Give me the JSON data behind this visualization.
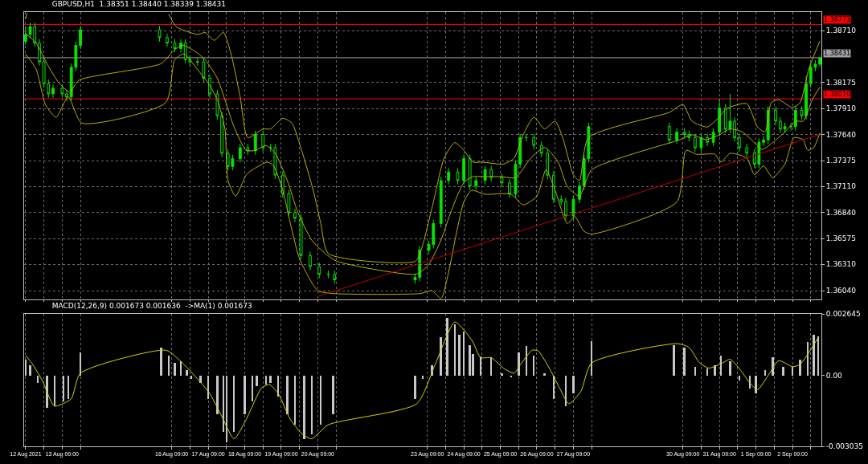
{
  "chart_data": [
    {
      "type": "candlestick",
      "title": "GBPUSD,H1  1.38351 1.38440 1.38339 1.38431",
      "color": "#00e600",
      "x": [
        "2021-08-12T09:00",
        "2021-08-12T12:00",
        "2021-08-12T15:00",
        "2021-08-12T18:00",
        "2021-08-12T21:00",
        "2021-08-13T00:00",
        "2021-08-13T03:00",
        "2021-08-13T09:00",
        "2021-08-13T12:00",
        "2021-08-13T15:00",
        "2021-08-13T18:00",
        "2021-08-13T21:00",
        "2021-08-16T01:00",
        "2021-08-16T06:00",
        "2021-08-16T11:00",
        "2021-08-16T15:00",
        "2021-08-16T18:00",
        "2021-08-16T21:00",
        "2021-08-17T02:00",
        "2021-08-17T06:00",
        "2021-08-17T10:00",
        "2021-08-17T15:00",
        "2021-08-17T18:00",
        "2021-08-17T22:00",
        "2021-08-18T01:00",
        "2021-08-18T06:00",
        "2021-08-18T11:00",
        "2021-08-18T16:00",
        "2021-08-18T21:00",
        "2021-08-19T02:00",
        "2021-08-19T05:00",
        "2021-08-19T10:00",
        "2021-08-19T14:00",
        "2021-08-19T18:00",
        "2021-08-19T22:00",
        "2021-08-20T04:00",
        "2021-08-20T10:00",
        "2021-08-20T16:00",
        "2021-08-20T20:00",
        "2021-08-23T01:00",
        "2021-08-23T04:00",
        "2021-08-23T10:00",
        "2021-08-23T13:00",
        "2021-08-23T18:00",
        "2021-08-23T23:00",
        "2021-08-24T05:00",
        "2021-08-24T09:00",
        "2021-08-24T13:00",
        "2021-08-24T17:00",
        "2021-08-24T23:00",
        "2021-08-25T03:00",
        "2021-08-25T10:00",
        "2021-08-25T15:00",
        "2021-08-25T19:00",
        "2021-08-25T22:00",
        "2021-08-26T02:00",
        "2021-08-26T07:00",
        "2021-08-26T12:00",
        "2021-08-26T16:00",
        "2021-08-26T20:00",
        "2021-08-27T01:00",
        "2021-08-27T04:00",
        "2021-08-27T09:00",
        "2021-08-27T13:00",
        "2021-08-27T16:00",
        "2021-08-27T19:00",
        "2021-08-30T00:00",
        "2021-08-30T05:00",
        "2021-08-30T10:00",
        "2021-08-30T13:00",
        "2021-08-30T17:00",
        "2021-08-30T21:00",
        "2021-08-31T01:00",
        "2021-08-31T05:00",
        "2021-08-31T09:00",
        "2021-08-31T13:00",
        "2021-08-31T16:00",
        "2021-08-31T19:00",
        "2021-08-31T22:00",
        "2021-09-01T03:00",
        "2021-09-01T08:00",
        "2021-09-01T11:00",
        "2021-09-01T14:00",
        "2021-09-01T17:00",
        "2021-09-01T22:00",
        "2021-09-02T01:00",
        "2021-09-02T04:00",
        "2021-09-02T08:00",
        "2021-09-02T11:00",
        "2021-09-02T15:00",
        "2021-09-02T18:00",
        "2021-09-02T21:00",
        "2021-09-03T00:00",
        "2021-09-03T03:00"
      ],
      "ohlc": [
        [
          1.386,
          1.3875,
          1.3856,
          1.3867
        ],
        [
          1.3867,
          1.3879,
          1.3863,
          1.3875
        ],
        [
          1.3875,
          1.3879,
          1.38542,
          1.38582
        ],
        [
          1.38582,
          1.38622,
          1.38349,
          1.38389
        ],
        [
          1.38389,
          1.38429,
          1.38125,
          1.38165
        ],
        [
          1.38165,
          1.38205,
          1.3802,
          1.3806
        ],
        [
          1.3806,
          1.38157,
          1.3802,
          1.38117
        ],
        [
          1.38117,
          1.38157,
          1.3802,
          1.3806
        ],
        [
          1.3806,
          1.381,
          1.37988,
          1.38028
        ],
        [
          1.38028,
          1.38373,
          1.37988,
          1.38333
        ],
        [
          1.38333,
          1.38598,
          1.38293,
          1.38558
        ],
        [
          1.38558,
          1.38758,
          1.38518,
          1.38718
        ],
        [
          1.38718,
          1.38758,
          1.38598,
          1.38638
        ],
        [
          1.38638,
          1.38678,
          1.38542,
          1.38582
        ],
        [
          1.38582,
          1.38622,
          1.38486,
          1.38526
        ],
        [
          1.38526,
          1.38622,
          1.38486,
          1.38582
        ],
        [
          1.38582,
          1.38622,
          1.38373,
          1.38413
        ],
        [
          1.38413,
          1.38453,
          1.38349,
          1.38389
        ],
        [
          1.38389,
          1.38429,
          1.38349,
          1.38389
        ],
        [
          1.38389,
          1.38429,
          1.38181,
          1.38221
        ],
        [
          1.38221,
          1.38261,
          1.3802,
          1.3806
        ],
        [
          1.3806,
          1.381,
          1.37796,
          1.37836
        ],
        [
          1.37836,
          1.37876,
          1.37411,
          1.37451
        ],
        [
          1.37451,
          1.37491,
          1.37275,
          1.37315
        ],
        [
          1.37315,
          1.37435,
          1.37275,
          1.37395
        ],
        [
          1.37395,
          1.37547,
          1.37355,
          1.37507
        ],
        [
          1.37507,
          1.37547,
          1.37435,
          1.37475
        ],
        [
          1.37475,
          1.37683,
          1.37435,
          1.37643
        ],
        [
          1.37643,
          1.37683,
          1.37467,
          1.37507
        ],
        [
          1.37507,
          1.37547,
          1.37467,
          1.37507
        ],
        [
          1.37507,
          1.37547,
          1.37186,
          1.37226
        ],
        [
          1.37226,
          1.37266,
          1.36994,
          1.37034
        ],
        [
          1.37034,
          1.37074,
          1.36801,
          1.36841
        ],
        [
          1.36841,
          1.36881,
          1.36745,
          1.36785
        ],
        [
          1.36785,
          1.36825,
          1.3636,
          1.364
        ],
        [
          1.364,
          1.3644,
          1.36248,
          1.36288
        ],
        [
          1.36288,
          1.36328,
          1.36168,
          1.36208
        ],
        [
          1.36208,
          1.36248,
          1.36168,
          1.36208
        ],
        [
          1.36208,
          1.36248,
          1.36112,
          1.36152
        ],
        [
          1.36152,
          1.36216,
          1.36112,
          1.36176
        ],
        [
          1.36176,
          1.36496,
          1.36136,
          1.36456
        ],
        [
          1.36456,
          1.36553,
          1.36416,
          1.36513
        ],
        [
          1.36513,
          1.36769,
          1.36473,
          1.36729
        ],
        [
          1.36729,
          1.3721,
          1.36689,
          1.3717
        ],
        [
          1.3717,
          1.37298,
          1.3713,
          1.37258
        ],
        [
          1.37258,
          1.37298,
          1.3713,
          1.3717
        ],
        [
          1.3717,
          1.37435,
          1.3713,
          1.37395
        ],
        [
          1.37395,
          1.37435,
          1.37074,
          1.37114
        ],
        [
          1.37114,
          1.3721,
          1.37074,
          1.3717
        ],
        [
          1.3717,
          1.37322,
          1.3713,
          1.37282
        ],
        [
          1.37282,
          1.37322,
          1.37162,
          1.37202
        ],
        [
          1.37202,
          1.37242,
          1.37106,
          1.37146
        ],
        [
          1.37146,
          1.37186,
          1.36994,
          1.37034
        ],
        [
          1.37034,
          1.37379,
          1.36994,
          1.37339
        ],
        [
          1.37339,
          1.37651,
          1.37299,
          1.37611
        ],
        [
          1.37611,
          1.37651,
          1.37571,
          1.37611
        ],
        [
          1.37611,
          1.37651,
          1.37491,
          1.37531
        ],
        [
          1.37531,
          1.37571,
          1.37411,
          1.37451
        ],
        [
          1.37451,
          1.37491,
          1.37186,
          1.37226
        ],
        [
          1.37226,
          1.37266,
          1.36938,
          1.36978
        ],
        [
          1.36978,
          1.37018,
          1.36914,
          1.36954
        ],
        [
          1.36954,
          1.36994,
          1.36769,
          1.36809
        ],
        [
          1.36809,
          1.37018,
          1.36769,
          1.36978
        ],
        [
          1.36978,
          1.37154,
          1.36938,
          1.37114
        ],
        [
          1.37114,
          1.37435,
          1.37074,
          1.37395
        ],
        [
          1.37395,
          1.37764,
          1.37355,
          1.37724
        ],
        [
          1.37724,
          1.37764,
          1.37547,
          1.37587
        ],
        [
          1.37587,
          1.37707,
          1.37547,
          1.37667
        ],
        [
          1.37667,
          1.37707,
          1.37603,
          1.37643
        ],
        [
          1.37643,
          1.37683,
          1.37571,
          1.37611
        ],
        [
          1.37611,
          1.37651,
          1.37467,
          1.37507
        ],
        [
          1.37507,
          1.37651,
          1.37467,
          1.37611
        ],
        [
          1.37611,
          1.37651,
          1.37523,
          1.37563
        ],
        [
          1.37563,
          1.37707,
          1.37523,
          1.37667
        ],
        [
          1.37667,
          1.3801,
          1.37627,
          1.37916
        ],
        [
          1.37916,
          1.37956,
          1.37659,
          1.37699
        ],
        [
          1.37699,
          1.3806,
          1.37659,
          1.3778
        ],
        [
          1.3778,
          1.3782,
          1.37571,
          1.37611
        ],
        [
          1.37611,
          1.37651,
          1.37467,
          1.37507
        ],
        [
          1.37507,
          1.37547,
          1.37411,
          1.37451
        ],
        [
          1.37451,
          1.37491,
          1.37299,
          1.37339
        ],
        [
          1.37339,
          1.37603,
          1.37299,
          1.37563
        ],
        [
          1.37563,
          1.37627,
          1.37523,
          1.37587
        ],
        [
          1.37587,
          1.37932,
          1.37547,
          1.37892
        ],
        [
          1.37892,
          1.37932,
          1.3774,
          1.3778
        ],
        [
          1.3778,
          1.3782,
          1.37659,
          1.37699
        ],
        [
          1.37699,
          1.37764,
          1.37659,
          1.37724
        ],
        [
          1.37724,
          1.37764,
          1.37684,
          1.37724
        ],
        [
          1.37724,
          1.37932,
          1.37684,
          1.37892
        ],
        [
          1.37892,
          1.37932,
          1.37796,
          1.37836
        ],
        [
          1.37836,
          1.3825,
          1.37796,
          1.38165
        ],
        [
          1.38165,
          1.38373,
          1.38125,
          1.38333
        ],
        [
          1.38333,
          1.38405,
          1.38293,
          1.38365
        ],
        [
          1.38365,
          1.3844,
          1.38339,
          1.38431
        ]
      ],
      "series": [
        {
          "type": "line",
          "color": "#b8b000",
          "x": [
            "2021-08-12T09:00",
            "2021-08-12T10:00",
            "2021-08-12T12:00",
            "2021-08-16T07:00",
            "2021-08-16T12:00",
            "2021-08-17T02:00",
            "2021-08-17T07:00",
            "2021-08-17T13:00",
            "2021-08-17T19:00",
            "2021-08-18T00:00",
            "2021-08-18T06:00",
            "2021-08-18T11:00",
            "2021-08-18T21:00",
            "2021-08-19T02:00",
            "2021-08-19T10:00",
            "2021-08-19T16:00",
            "2021-08-19T23:00",
            "2021-08-20T06:00",
            "2021-08-20T11:00",
            "2021-08-20T16:00",
            "2021-08-23T01:00",
            "2021-08-23T05:00",
            "2021-08-23T13:00",
            "2021-08-23T20:00",
            "2021-08-24T03:00",
            "2021-08-24T09:00",
            "2021-08-24T15:00",
            "2021-08-24T21:00",
            "2021-08-25T11:00",
            "2021-08-25T18:00",
            "2021-08-26T00:00",
            "2021-08-26T07:00",
            "2021-08-26T14:00",
            "2021-08-26T21:00",
            "2021-08-27T02:00",
            "2021-08-27T09:00",
            "2021-08-27T13:00",
            "2021-08-27T19:00",
            "2021-08-30T00:00",
            "2021-08-30T09:00",
            "2021-08-30T15:00",
            "2021-08-31T01:00",
            "2021-08-31T08:00",
            "2021-08-31T14:00",
            "2021-09-01T03:00",
            "2021-09-01T10:00",
            "2021-09-01T15:00",
            "2021-09-01T19:00",
            "2021-09-02T00:00",
            "2021-09-02T09:00",
            "2021-09-02T14:00",
            "2021-09-02T20:00",
            "2021-09-03T03:00"
          ],
          "values": [
            1.3883,
            1.3889,
            null,
            1.3888,
            1.3875,
            1.3867,
            1.3869,
            1.3861,
            1.3869,
            1.3847,
            1.3803,
            1.3761,
            1.377,
            1.377,
            1.3781,
            1.3776,
            1.3745,
            1.3707,
            1.3673,
            1.3642,
            1.3634,
            1.3646,
            1.3695,
            1.374,
            1.3756,
            1.3748,
            1.3736,
            1.3736,
            1.3734,
            1.374,
            1.3764,
            1.3782,
            1.377,
            1.3778,
            1.3761,
            1.3723,
            1.3717,
            1.3761,
            1.3787,
            1.3795,
            1.3778,
            1.3772,
            1.3781,
            1.3791,
            1.3796,
            1.3772,
            1.3767,
            1.3797,
            1.38,
            1.3792,
            1.3797,
            1.3833,
            1.386
          ]
        },
        {
          "type": "line",
          "color": "#b8b000",
          "x": [
            "2021-08-12T09:00",
            "2021-08-12T16:00",
            "2021-08-12T23:00",
            "2021-08-13T07:00",
            "2021-08-13T14:00",
            "2021-08-13T20:00",
            "2021-08-16T02:00",
            "2021-08-16T10:00",
            "2021-08-16T16:00",
            "2021-08-17T00:00",
            "2021-08-17T07:00",
            "2021-08-17T15:00",
            "2021-08-17T20:00",
            "2021-08-18T02:00",
            "2021-08-18T10:00",
            "2021-08-18T16:00",
            "2021-08-18T23:00",
            "2021-08-19T05:00",
            "2021-08-19T13:00",
            "2021-08-19T20:00",
            "2021-08-20T05:00",
            "2021-08-20T14:00",
            "2021-08-20T22:00",
            "2021-08-23T02:00",
            "2021-08-23T10:00",
            "2021-08-23T18:00",
            "2021-08-24T01:00",
            "2021-08-24T09:00",
            "2021-08-24T15:00",
            "2021-08-24T23:00",
            "2021-08-25T10:00",
            "2021-08-25T19:00",
            "2021-08-26T05:00",
            "2021-08-26T14:00",
            "2021-08-26T23:00",
            "2021-08-27T05:00",
            "2021-08-27T13:00",
            "2021-08-27T21:00",
            "2021-08-30T07:00",
            "2021-08-30T15:00",
            "2021-08-31T00:00",
            "2021-08-31T09:00",
            "2021-08-31T16:00",
            "2021-09-01T00:00",
            "2021-09-01T06:00",
            "2021-09-01T13:00",
            "2021-09-01T20:00",
            "2021-09-02T04:00",
            "2021-09-02T11:00",
            "2021-09-02T16:00",
            "2021-09-02T22:00",
            "2021-09-03T03:00"
          ],
          "values": [
            1.3868,
            1.3858,
            1.3837,
            1.3817,
            1.3808,
            1.382,
            1.3837,
            1.385,
            1.3856,
            1.385,
            1.3841,
            1.3822,
            1.38,
            1.3772,
            1.3748,
            1.3748,
            1.3753,
            1.3745,
            1.3717,
            1.3684,
            1.3656,
            1.3642,
            1.3634,
            1.3621,
            1.3631,
            1.3656,
            1.3687,
            1.3715,
            1.3721,
            1.3721,
            1.3721,
            1.372,
            1.374,
            1.3751,
            1.3736,
            1.3711,
            1.3701,
            1.3728,
            1.3759,
            1.3764,
            1.3759,
            1.3764,
            1.377,
            1.3767,
            1.3759,
            1.3749,
            1.3756,
            1.3767,
            1.3778,
            1.3778,
            1.38,
            1.3813
          ]
        },
        {
          "type": "line",
          "color": "#b8b000",
          "x": [
            "2021-08-12T09:00",
            "2021-08-12T16:00",
            "2021-08-12T22:00",
            "2021-08-13T05:00",
            "2021-08-13T13:00",
            "2021-08-13T22:00",
            "2021-08-16T05:00",
            "2021-08-16T11:00",
            "2021-08-16T17:00",
            "2021-08-17T02:00",
            "2021-08-17T09:00",
            "2021-08-17T15:00",
            "2021-08-17T20:00",
            "2021-08-17T22:00",
            "2021-08-18T03:00",
            "2021-08-18T10:00",
            "2021-08-18T14:00",
            "2021-08-19T00:00",
            "2021-08-19T04:00",
            "2021-08-19T10:00",
            "2021-08-19T15:00",
            "2021-08-19T21:00",
            "2021-08-20T09:00",
            "2021-08-20T20:00",
            "2021-08-23T04:00",
            "2021-08-23T12:00",
            "2021-08-23T18:00",
            "2021-08-23T23:00",
            "2021-08-24T04:00",
            "2021-08-24T09:00",
            "2021-08-24T14:00",
            "2021-08-24T23:00",
            "2021-08-25T16:00",
            "2021-08-26T00:00",
            "2021-08-26T09:00",
            "2021-08-26T15:00",
            "2021-08-26T21:00",
            "2021-08-27T05:00",
            "2021-08-27T10:00",
            "2021-08-27T16:00",
            "2021-08-27T21:00",
            "2021-08-30T05:00",
            "2021-08-30T11:00",
            "2021-08-30T18:00",
            "2021-08-31T06:00",
            "2021-08-31T10:00",
            "2021-08-31T16:00",
            "2021-09-01T03:00",
            "2021-09-01T08:00",
            "2021-09-01T14:00",
            "2021-09-01T20:00",
            "2021-09-02T04:00",
            "2021-09-02T10:00",
            "2021-09-02T16:00",
            "2021-09-02T19:00",
            "2021-09-02T23:00",
            "2021-09-03T03:00"
          ],
          "values": [
            1.3847,
            1.3831,
            1.3795,
            1.3782,
            1.3803,
            1.3776,
            1.3797,
            1.3841,
            1.3847,
            1.3831,
            1.3817,
            1.38,
            1.377,
            1.3717,
            1.3701,
            1.3723,
            1.3728,
            1.3736,
            1.3732,
            1.3707,
            1.3673,
            1.3637,
            1.3604,
            1.3601,
            1.3601,
            1.3604,
            1.3596,
            1.3623,
            1.3662,
            1.3695,
            1.3707,
            1.3703,
            1.3703,
            1.3692,
            1.3701,
            1.3728,
            1.3707,
            1.3673,
            1.368,
            1.3665,
            1.3662,
            1.3695,
            1.3748,
            1.3744,
            1.3744,
            1.3736,
            1.3745,
            1.374,
            1.3723,
            1.3732,
            1.372,
            1.3734,
            1.3761,
            1.3759,
            1.3748,
            1.3751,
            1.3766
          ]
        },
        {
          "type": "line",
          "color": "#c00000",
          "x": [
            "2021-08-20T09:00",
            "2021-09-03T02:00"
          ],
          "values": [
            1.3598,
            1.3764
          ]
        }
      ],
      "ref_lines": [
        {
          "axis": "y",
          "value": 1.38773,
          "label": "1.38773",
          "color": "#ff0000"
        },
        {
          "axis": "y",
          "value": 1.3801,
          "label": "1.38010",
          "color": "#ff0000"
        },
        {
          "axis": "y",
          "value": 1.38431,
          "label": "1.38431",
          "color": "#a0a0a4"
        }
      ],
      "xlim": [
        "2021-08-12T08:00",
        "2021-09-03T04:00"
      ],
      "xticks": [
        {
          "value": "2021-08-12T09:00",
          "label": null
        },
        {
          "value": "2021-08-12T21:00",
          "label": null
        },
        {
          "value": "2021-08-13T09:00",
          "label": null
        },
        {
          "value": "2021-08-13T21:00",
          "label": null
        },
        {
          "value": "2021-08-16T09:00",
          "label": null
        },
        {
          "value": "2021-08-16T21:00",
          "label": null
        },
        {
          "value": "2021-08-17T09:00",
          "label": null
        },
        {
          "value": "2021-08-17T21:00",
          "label": null
        },
        {
          "value": "2021-08-18T09:00",
          "label": null
        },
        {
          "value": "2021-08-18T21:00",
          "label": null
        },
        {
          "value": "2021-08-19T09:00",
          "label": null
        },
        {
          "value": "2021-08-19T21:00",
          "label": null
        },
        {
          "value": "2021-08-20T09:00",
          "label": null
        },
        {
          "value": "2021-08-20T21:00",
          "label": null
        },
        {
          "value": "2021-08-23T09:00",
          "label": null
        },
        {
          "value": "2021-08-23T21:00",
          "label": null
        },
        {
          "value": "2021-08-24T09:00",
          "label": null
        },
        {
          "value": "2021-08-24T21:00",
          "label": null
        },
        {
          "value": "2021-08-25T09:00",
          "label": null
        },
        {
          "value": "2021-08-25T21:00",
          "label": null
        },
        {
          "value": "2021-08-26T09:00",
          "label": null
        },
        {
          "value": "2021-08-26T21:00",
          "label": null
        },
        {
          "value": "2021-08-27T09:00",
          "label": null
        },
        {
          "value": "2021-08-27T21:00",
          "label": null
        },
        {
          "value": "2021-08-30T09:00",
          "label": null
        },
        {
          "value": "2021-08-30T21:00",
          "label": null
        },
        {
          "value": "2021-08-31T09:00",
          "label": null
        },
        {
          "value": "2021-08-31T21:00",
          "label": null
        },
        {
          "value": "2021-09-01T09:00",
          "label": null
        },
        {
          "value": "2021-09-01T21:00",
          "label": null
        },
        {
          "value": "2021-09-02T09:00",
          "label": null
        },
        {
          "value": "2021-09-02T21:00",
          "label": null
        }
      ],
      "ylim": [
        1.3595,
        1.389
      ],
      "yticks": [
        {
          "value": 1.3871,
          "label": "1.38710"
        },
        1.38175,
        {
          "value": 1.3791,
          "label": "1.37910"
        },
        {
          "value": 1.3764,
          "label": "1.37640"
        },
        1.37375,
        {
          "value": 1.3711,
          "label": "1.37110"
        },
        {
          "value": 1.3684,
          "label": "1.36840"
        },
        1.36575,
        {
          "value": 1.3631,
          "label": "1.36310"
        },
        {
          "value": 1.3604,
          "label": "1.36040"
        }
      ],
      "grid": true,
      "tick_labels": "y"
    },
    {
      "type": "bar",
      "title": "MACD(12,26,9) 0.001673 0.001636  ->MA(1) 0.001673",
      "series": [
        {
          "type": "bar",
          "color": "#c8c8c8",
          "x": [
            "2021-08-12T09:00",
            "2021-08-12T12:00",
            "2021-08-12T17:00",
            "2021-08-12T23:00",
            "2021-08-13T04:00",
            "2021-08-13T10:00",
            "2021-08-13T13:00",
            "2021-08-13T17:00",
            "2021-08-13T21:00",
            "2021-08-16T02:00",
            "2021-08-16T07:00",
            "2021-08-16T11:00",
            "2021-08-16T15:00",
            "2021-08-16T19:00",
            "2021-08-16T22:00",
            "2021-08-17T04:00",
            "2021-08-17T09:00",
            "2021-08-17T15:00",
            "2021-08-17T19:00",
            "2021-08-17T21:00",
            "2021-08-18T02:00",
            "2021-08-18T09:00",
            "2021-08-18T14:00",
            "2021-08-18T17:00",
            "2021-08-18T23:00",
            "2021-08-19T02:00",
            "2021-08-19T07:00",
            "2021-08-19T13:00",
            "2021-08-19T18:00",
            "2021-08-20T00:00",
            "2021-08-20T05:00",
            "2021-08-20T11:00",
            "2021-08-20T19:00",
            "2021-08-23T01:00",
            "2021-08-23T06:00",
            "2021-08-23T12:00",
            "2021-08-23T18:00",
            "2021-08-23T22:00",
            "2021-08-24T03:00",
            "2021-08-24T06:00",
            "2021-08-24T09:00",
            "2021-08-24T13:00",
            "2021-08-24T15:00",
            "2021-08-24T20:00",
            "2021-08-25T03:00",
            "2021-08-25T10:00",
            "2021-08-25T16:00",
            "2021-08-25T21:00",
            "2021-08-26T02:00",
            "2021-08-26T07:00",
            "2021-08-26T14:00",
            "2021-08-26T20:00",
            "2021-08-27T04:00",
            "2021-08-27T09:00",
            "2021-08-27T15:00",
            "2021-08-27T21:00",
            "2021-08-30T03:00",
            "2021-08-30T10:00",
            "2021-08-30T17:00",
            "2021-08-31T01:00",
            "2021-08-31T06:00",
            "2021-08-31T10:00",
            "2021-08-31T16:00",
            "2021-08-31T22:00",
            "2021-09-01T05:00",
            "2021-09-01T09:00",
            "2021-09-01T15:00",
            "2021-09-01T20:00",
            "2021-09-02T03:00",
            "2021-09-02T09:00",
            "2021-09-02T14:00",
            "2021-09-02T19:00",
            "2021-09-02T23:00",
            "2021-09-03T02:00"
          ],
          "values": [
            0.0007,
            0.00045,
            -0.00032,
            -0.00137,
            -0.00131,
            -0.00112,
            -0.00099,
            0,
            0.00099,
            0.00121,
            0.00086,
            0.00054,
            0.00061,
            0.00022,
            -0.00013,
            -0.00032,
            -0.00099,
            -0.00166,
            -0.00242,
            -0.00287,
            -0.00242,
            -0.00166,
            -0.00112,
            -0.00045,
            -0.00038,
            -0.00032,
            -0.00089,
            -0.00166,
            -0.00211,
            -0.00274,
            -0.00252,
            -0.00211,
            -0.00166,
            -0.00099,
            -0.00013,
            0.00045,
            0.00166,
            0.00246,
            0.0022,
            0.00176,
            0.00188,
            0.00131,
            0.00093,
            0.00083,
            0.00077,
            0.0001,
            -6e-05,
            0.00099,
            0.00128,
            0.00086,
            0.0001,
            -0.00099,
            -0.00131,
            -0.00077,
            0,
            0.00147,
            0.00131,
            0.00121,
            0.00038,
            0.00032,
            0.00045,
            0.00086,
            0.00061,
            -0.00022,
            -0.00054,
            -0.00077,
            0.00022,
            0.00077,
            0.00038,
            0.00038,
            0.00067,
            0.00144,
            0.00176,
            0.001673
          ]
        },
        {
          "type": "line",
          "color": "#d4d400",
          "x": [
            "2021-08-12T09:00",
            "2021-08-12T13:00",
            "2021-08-12T20:00",
            "2021-08-13T04:00",
            "2021-08-13T15:00",
            "2021-08-13T21:00",
            "2021-08-16T05:00",
            "2021-08-16T14:00",
            "2021-08-17T00:00",
            "2021-08-17T10:00",
            "2021-08-17T18:00",
            "2021-08-18T02:00",
            "2021-08-18T10:00",
            "2021-08-18T20:00",
            "2021-08-19T01:00",
            "2021-08-19T07:00",
            "2021-08-19T15:00",
            "2021-08-19T23:00",
            "2021-08-20T05:00",
            "2021-08-20T16:00",
            "2021-08-23T02:00",
            "2021-08-23T14:00",
            "2021-08-24T03:00",
            "2021-08-24T10:00",
            "2021-08-24T15:00",
            "2021-08-24T20:00",
            "2021-08-25T03:00",
            "2021-08-25T11:00",
            "2021-08-25T18:00",
            "2021-08-25T22:00",
            "2021-08-26T06:00",
            "2021-08-26T10:00",
            "2021-08-26T18:00",
            "2021-08-27T00:00",
            "2021-08-27T06:00",
            "2021-08-27T14:00",
            "2021-08-27T21:00",
            "2021-08-30T05:00",
            "2021-08-30T13:00",
            "2021-08-30T20:00",
            "2021-08-31T02:00",
            "2021-08-31T11:00",
            "2021-08-31T16:00",
            "2021-08-31T23:00",
            "2021-09-01T05:00",
            "2021-09-01T10:00",
            "2021-09-01T17:00",
            "2021-09-02T00:00",
            "2021-09-02T09:00",
            "2021-09-02T14:00",
            "2021-09-03T02:00"
          ],
          "values": [
            0.00086,
            0.00054,
            -0.00022,
            -0.00131,
            -0.00099,
            0.0001,
            0.00109,
            0.00067,
            0,
            -0.00077,
            -0.00176,
            -0.00271,
            -0.00188,
            -0.00054,
            -0.00038,
            -0.00077,
            -0.00188,
            -0.00252,
            -0.00271,
            -0.00211,
            -0.00121,
            0.00045,
            0.0023,
            0.00188,
            0.00144,
            0.00077,
            0.00077,
            0.00032,
            0.0001,
            0.00045,
            0.00109,
            0.00105,
            0.00022,
            -0.00054,
            -0.00121,
            -0.00067,
            0.00054,
            0.00137,
            0.00121,
            0.00054,
            0.00032,
            0.00054,
            0.0007,
            0.00022,
            -0.00032,
            -0.00061,
            0,
            0.00064,
            0.00038,
            0.00048,
            0.001636
          ]
        }
      ],
      "xlim": [
        "2021-08-12T08:00",
        "2021-09-03T04:00"
      ],
      "xticks": [
        {
          "value": "2021-08-12T09:00",
          "label": "12 Aug 2021"
        },
        {
          "value": "2021-08-12T21:00",
          "label": null
        },
        {
          "value": "2021-08-13T09:00",
          "label": "13 Aug 09:00"
        },
        {
          "value": "2021-08-13T21:00",
          "label": null
        },
        {
          "value": "2021-08-16T09:00",
          "label": "16 Aug 09:00"
        },
        {
          "value": "2021-08-16T21:00",
          "label": null
        },
        {
          "value": "2021-08-17T09:00",
          "label": "17 Aug 09:00"
        },
        {
          "value": "2021-08-17T21:00",
          "label": null
        },
        {
          "value": "2021-08-18T09:00",
          "label": "18 Aug 09:00"
        },
        {
          "value": "2021-08-18T21:00",
          "label": null
        },
        {
          "value": "2021-08-19T09:00",
          "label": "19 Aug 09:00"
        },
        {
          "value": "2021-08-19T21:00",
          "label": null
        },
        {
          "value": "2021-08-20T09:00",
          "label": "20 Aug 09:00"
        },
        {
          "value": "2021-08-20T21:00",
          "label": null
        },
        {
          "value": "2021-08-23T09:00",
          "label": "23 Aug 09:00"
        },
        {
          "value": "2021-08-23T21:00",
          "label": null
        },
        {
          "value": "2021-08-24T09:00",
          "label": "24 Aug 09:00"
        },
        {
          "value": "2021-08-24T21:00",
          "label": null
        },
        {
          "value": "2021-08-25T09:00",
          "label": "25 Aug 09:00"
        },
        {
          "value": "2021-08-25T21:00",
          "label": null
        },
        {
          "value": "2021-08-26T09:00",
          "label": "26 Aug 09:00"
        },
        {
          "value": "2021-08-26T21:00",
          "label": null
        },
        {
          "value": "2021-08-27T09:00",
          "label": "27 Aug 09:00"
        },
        {
          "value": "2021-08-27T21:00",
          "label": null
        },
        {
          "value": "2021-08-30T09:00",
          "label": "30 Aug 09:00"
        },
        {
          "value": "2021-08-30T21:00",
          "label": null
        },
        {
          "value": "2021-08-31T09:00",
          "label": "31 Aug 09:00"
        },
        {
          "value": "2021-08-31T21:00",
          "label": null
        },
        {
          "value": "2021-09-01T09:00",
          "label": "1 Sep 09:00"
        },
        {
          "value": "2021-09-01T21:00",
          "label": null
        },
        {
          "value": "2021-09-02T09:00",
          "label": "2 Sep 09:00"
        },
        {
          "value": "2021-09-02T21:00",
          "label": null
        }
      ],
      "ylim": [
        -0.003035,
        0.002645
      ],
      "yticks": [
        0.002645,
        {
          "value": 0,
          "label": "0.00"
        },
        -0.003035
      ],
      "grid": "x"
    }
  ]
}
